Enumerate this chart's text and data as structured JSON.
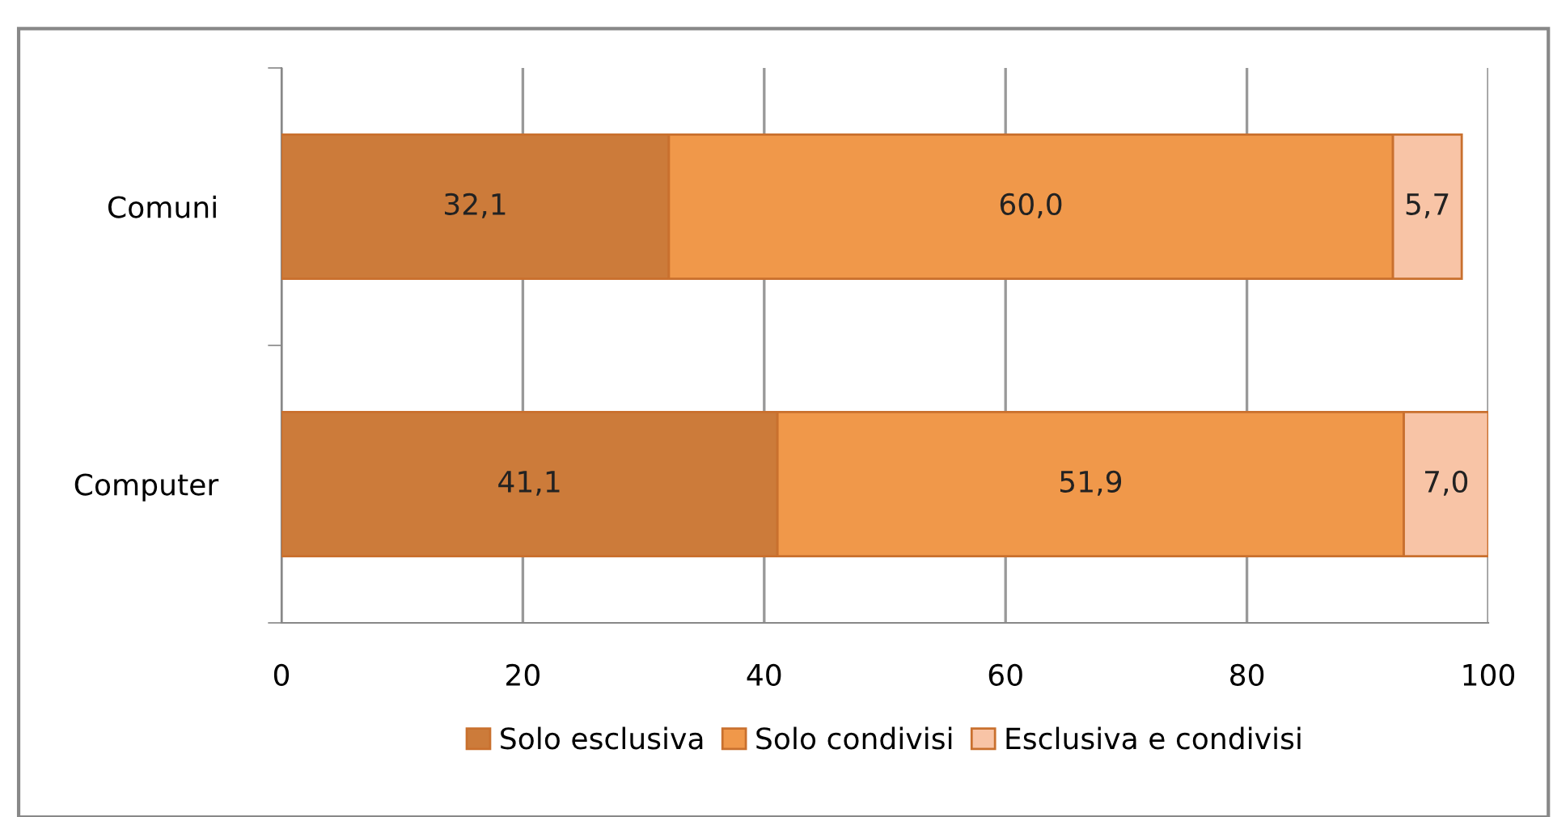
{
  "chart_data": {
    "type": "bar",
    "orientation": "horizontal",
    "stacked": true,
    "categories": [
      "Comuni",
      "Computer"
    ],
    "series": [
      {
        "name": "Solo esclusiva",
        "color": "#cc7b3a",
        "values": [
          32.1,
          41.1
        ]
      },
      {
        "name": "Solo condivisi",
        "color": "#f0984a",
        "values": [
          60.0,
          51.9
        ]
      },
      {
        "name": "Esclusiva e condivisi",
        "color": "#f8c4a6",
        "values": [
          5.7,
          7.0
        ]
      }
    ],
    "value_labels": [
      [
        "32,1",
        "41,1"
      ],
      [
        "60,0",
        "51,9"
      ],
      [
        "5,7",
        "7,0"
      ]
    ],
    "xlim": [
      0,
      100
    ],
    "xticks": [
      0,
      20,
      40,
      60,
      80,
      100
    ],
    "grid": "x",
    "legend": "bottom"
  }
}
